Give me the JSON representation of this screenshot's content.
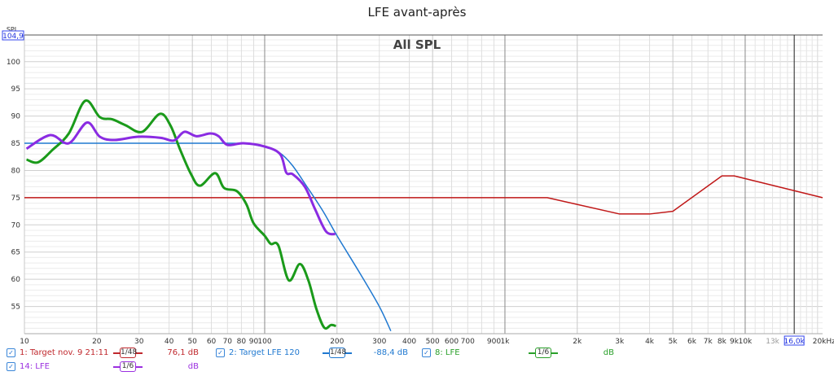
{
  "title": "LFE avant-après",
  "overlay_label": "All SPL",
  "y_axis_label": "SPL",
  "y_top_value": "104,9",
  "x_cursor_value": "16,0k",
  "chart_data": {
    "type": "line",
    "title": "LFE avant-après",
    "xscale": "log",
    "xlim": [
      10,
      21000
    ],
    "ylim": [
      50,
      104.9
    ],
    "grid": true,
    "x_tick_labels": [
      [
        10,
        "10"
      ],
      [
        20,
        "20"
      ],
      [
        30,
        "30"
      ],
      [
        40,
        "40"
      ],
      [
        50,
        "50"
      ],
      [
        60,
        "60"
      ],
      [
        70,
        "70"
      ],
      [
        80,
        "80"
      ],
      [
        90,
        "90"
      ],
      [
        100,
        "100"
      ],
      [
        200,
        "200"
      ],
      [
        300,
        "300"
      ],
      [
        400,
        "400"
      ],
      [
        500,
        "500"
      ],
      [
        600,
        "600"
      ],
      [
        700,
        "700"
      ],
      [
        900,
        "900"
      ],
      [
        1000,
        "1k"
      ],
      [
        2000,
        "2k"
      ],
      [
        3000,
        "3k"
      ],
      [
        4000,
        "4k"
      ],
      [
        5000,
        "5k"
      ],
      [
        6000,
        "6k"
      ],
      [
        7000,
        "7k"
      ],
      [
        8000,
        "8k"
      ],
      [
        9000,
        "9k"
      ],
      [
        10000,
        "10k"
      ],
      [
        13000,
        "13k"
      ],
      [
        20000,
        "20kHz"
      ]
    ],
    "y_tick_labels": [
      100,
      95,
      90,
      85,
      80,
      75,
      70,
      65,
      60,
      55
    ],
    "series": [
      {
        "name": "1: Target nov. 9 21:11",
        "color": "#c01818",
        "width": 1.5,
        "x": [
          10,
          1500,
          3000,
          4000,
          5000,
          8000,
          9000,
          21000
        ],
        "y": [
          75,
          75,
          72,
          72,
          72.5,
          79,
          79,
          75
        ]
      },
      {
        "name": "2: Target LFE 120",
        "color": "#1f78d0",
        "width": 1.5,
        "x": [
          10,
          70,
          85,
          100,
          115,
          130,
          150,
          175,
          200,
          250,
          300,
          335
        ],
        "y": [
          85,
          85,
          84.9,
          84.3,
          83.3,
          81,
          77,
          72.5,
          68,
          61,
          55,
          50.5
        ]
      },
      {
        "name": "8: LFE",
        "color": "#1a9a1a",
        "width": 3,
        "x": [
          10.2,
          11.4,
          13.1,
          15.3,
          17.9,
          20.6,
          23.2,
          26.4,
          30.9,
          36.6,
          40.5,
          44.5,
          49.4,
          53.8,
          62.2,
          67.7,
          76.6,
          83.9,
          89.9,
          100,
          106,
          114,
          126,
          140,
          152,
          164,
          177,
          189,
          198
        ],
        "y": [
          82,
          81.5,
          83.8,
          86.8,
          92.8,
          89.8,
          89.4,
          88.3,
          87.1,
          90.4,
          88.3,
          83.8,
          79.3,
          77.2,
          79.5,
          76.8,
          76.2,
          73.8,
          70.3,
          68,
          66.5,
          66.2,
          59.8,
          62.8,
          59.8,
          54.6,
          51.1,
          51.6,
          51.4
        ]
      },
      {
        "name": "14: LFE",
        "color": "#8a2be2",
        "width": 3,
        "x": [
          10.2,
          12.8,
          15.3,
          18.2,
          20.6,
          23.7,
          29.7,
          36.9,
          41.9,
          46.3,
          52,
          59.4,
          64.3,
          70,
          81.5,
          100,
          116,
          123,
          131,
          147,
          162,
          180,
          197
        ],
        "y": [
          84,
          86.5,
          85,
          88.8,
          86.2,
          85.6,
          86.2,
          86,
          85.5,
          87.1,
          86.3,
          86.8,
          86.3,
          84.7,
          85,
          84.4,
          83,
          79.6,
          79.3,
          77,
          72.9,
          68.8,
          68.3
        ]
      }
    ]
  },
  "legend": [
    {
      "label": "1: Target nov. 9 21:11",
      "smoothing": "1/48",
      "value": "76,1 dB",
      "color": "#c0282d"
    },
    {
      "label": "2: Target LFE 120",
      "smoothing": "1/48",
      "value": "-88,4 dB",
      "color": "#1f78d0"
    },
    {
      "label": "8: LFE",
      "smoothing": "1/6",
      "value": "dB",
      "color": "#2aa02a"
    },
    {
      "label": "14: LFE",
      "smoothing": "1/6",
      "value": "dB",
      "color": "#9b30e0"
    }
  ]
}
